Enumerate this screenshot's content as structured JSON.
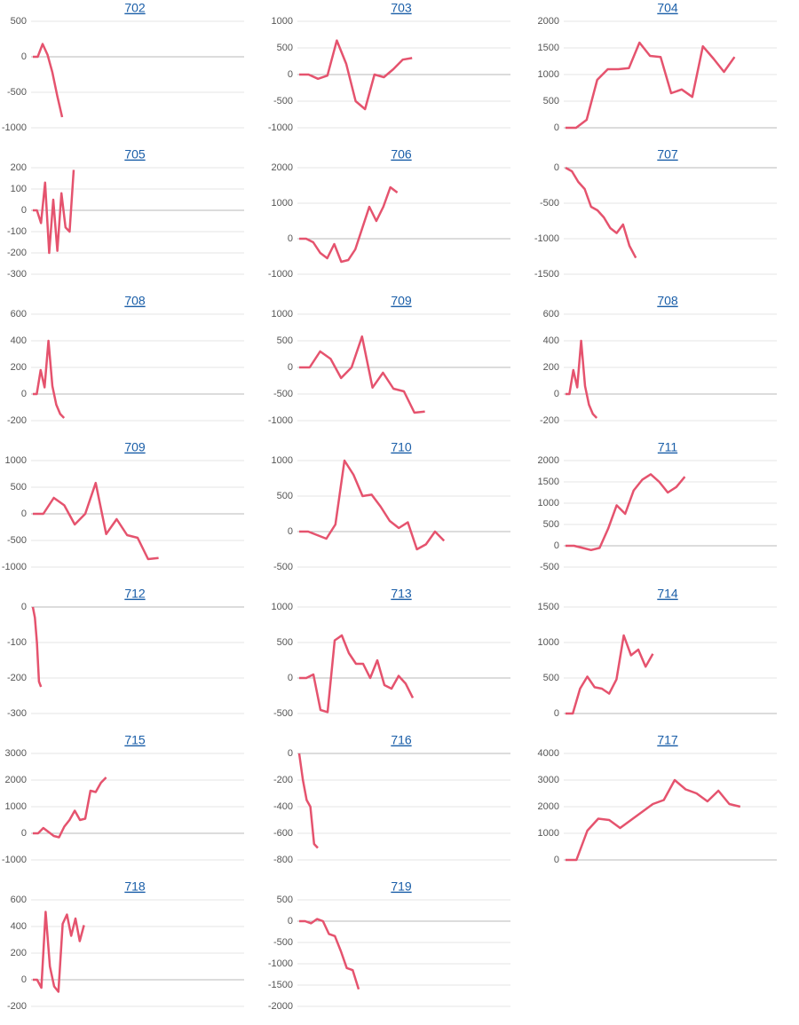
{
  "chart_data": [
    {
      "type": "line",
      "title": "702",
      "color": "#e5536e",
      "ylim": [
        -1000,
        500
      ],
      "yticks": [
        -1000,
        -500,
        0,
        500
      ],
      "values": [
        0,
        0,
        180,
        30,
        -220,
        -550,
        -850
      ]
    },
    {
      "type": "line",
      "title": "703",
      "color": "#e5536e",
      "ylim": [
        -1000,
        1000
      ],
      "yticks": [
        -1000,
        -500,
        0,
        500,
        1000
      ],
      "values": [
        0,
        0,
        -80,
        -20,
        640,
        200,
        -500,
        -650,
        0,
        -50,
        100,
        280,
        310
      ]
    },
    {
      "type": "line",
      "title": "704",
      "color": "#e5536e",
      "ylim": [
        0,
        2000
      ],
      "yticks": [
        0,
        500,
        1000,
        1500,
        2000
      ],
      "values": [
        0,
        0,
        150,
        900,
        1100,
        1100,
        1120,
        1600,
        1350,
        1330,
        650,
        720,
        580,
        1530,
        1300,
        1050,
        1330
      ]
    },
    {
      "type": "line",
      "title": "705",
      "color": "#e5536e",
      "ylim": [
        -300,
        200
      ],
      "yticks": [
        -300,
        -200,
        -100,
        0,
        100,
        200
      ],
      "values": [
        0,
        0,
        -60,
        130,
        -200,
        50,
        -190,
        80,
        -80,
        -100,
        190
      ]
    },
    {
      "type": "line",
      "title": "706",
      "color": "#e5536e",
      "ylim": [
        -1000,
        2000
      ],
      "yticks": [
        -1000,
        0,
        1000,
        2000
      ],
      "values": [
        0,
        0,
        -100,
        -400,
        -550,
        -150,
        -650,
        -600,
        -300,
        300,
        900,
        500,
        900,
        1450,
        1300
      ]
    },
    {
      "type": "line",
      "title": "707",
      "color": "#e5536e",
      "ylim": [
        -1500,
        0
      ],
      "yticks": [
        -1500,
        -1000,
        -500,
        0
      ],
      "values": [
        0,
        -50,
        -200,
        -300,
        -550,
        -600,
        -700,
        -850,
        -920,
        -800,
        -1100,
        -1270
      ]
    },
    {
      "type": "line",
      "title": "708",
      "color": "#e5536e",
      "ylim": [
        -200,
        600
      ],
      "yticks": [
        -200,
        0,
        200,
        400,
        600
      ],
      "values": [
        0,
        0,
        180,
        50,
        400,
        60,
        -80,
        -150,
        -180
      ]
    },
    {
      "type": "line",
      "title": "709",
      "color": "#e5536e",
      "ylim": [
        -1000,
        1000
      ],
      "yticks": [
        -1000,
        -500,
        0,
        500,
        1000
      ],
      "values": [
        0,
        0,
        300,
        160,
        -200,
        0,
        580,
        -380,
        -100,
        -400,
        -450,
        -850,
        -830
      ]
    },
    {
      "type": "line",
      "title": "708",
      "color": "#e5536e",
      "ylim": [
        -200,
        600
      ],
      "yticks": [
        -200,
        0,
        200,
        400,
        600
      ],
      "values": [
        0,
        0,
        180,
        50,
        400,
        60,
        -80,
        -150,
        -180
      ]
    },
    {
      "type": "line",
      "title": "709",
      "color": "#e5536e",
      "ylim": [
        -1000,
        1000
      ],
      "yticks": [
        -1000,
        -500,
        0,
        500,
        1000
      ],
      "values": [
        0,
        0,
        300,
        160,
        -200,
        0,
        580,
        -380,
        -100,
        -400,
        -450,
        -850,
        -830
      ]
    },
    {
      "type": "line",
      "title": "710",
      "color": "#e5536e",
      "ylim": [
        -500,
        1000
      ],
      "yticks": [
        -500,
        0,
        500,
        1000
      ],
      "values": [
        0,
        0,
        -50,
        -100,
        100,
        1000,
        800,
        500,
        520,
        350,
        150,
        50,
        130,
        -250,
        -180,
        0,
        -130
      ]
    },
    {
      "type": "line",
      "title": "711",
      "color": "#e5536e",
      "ylim": [
        -500,
        2000
      ],
      "yticks": [
        -500,
        0,
        500,
        1000,
        1500,
        2000
      ],
      "values": [
        0,
        0,
        -50,
        -100,
        -50,
        400,
        950,
        750,
        1300,
        1550,
        1680,
        1500,
        1250,
        1380,
        1620
      ]
    },
    {
      "type": "line",
      "title": "712",
      "color": "#e5536e",
      "ylim": [
        -300,
        0
      ],
      "yticks": [
        -300,
        -200,
        -100,
        0
      ],
      "values": [
        0,
        -30,
        -100,
        -210,
        -225
      ]
    },
    {
      "type": "line",
      "title": "713",
      "color": "#e5536e",
      "ylim": [
        -500,
        1000
      ],
      "yticks": [
        -500,
        0,
        500,
        1000
      ],
      "values": [
        0,
        0,
        50,
        -450,
        -480,
        530,
        600,
        350,
        200,
        200,
        0,
        250,
        -100,
        -150,
        30,
        -80,
        -280
      ]
    },
    {
      "type": "line",
      "title": "714",
      "color": "#e5536e",
      "ylim": [
        0,
        1500
      ],
      "yticks": [
        0,
        500,
        1000,
        1500
      ],
      "values": [
        0,
        0,
        350,
        520,
        370,
        350,
        280,
        480,
        1100,
        820,
        900,
        660,
        840
      ]
    },
    {
      "type": "line",
      "title": "715",
      "color": "#e5536e",
      "ylim": [
        -1000,
        3000
      ],
      "yticks": [
        -1000,
        0,
        1000,
        2000,
        3000
      ],
      "values": [
        0,
        0,
        200,
        50,
        -100,
        -150,
        250,
        500,
        850,
        500,
        550,
        1600,
        1550,
        1900,
        2100
      ]
    },
    {
      "type": "line",
      "title": "716",
      "color": "#e5536e",
      "ylim": [
        -800,
        0
      ],
      "yticks": [
        -800,
        -600,
        -400,
        -200,
        0
      ],
      "values": [
        0,
        -200,
        -350,
        -400,
        -680,
        -710
      ]
    },
    {
      "type": "line",
      "title": "717",
      "color": "#e5536e",
      "ylim": [
        0,
        4000
      ],
      "yticks": [
        0,
        1000,
        2000,
        3000,
        4000
      ],
      "values": [
        0,
        0,
        1100,
        1550,
        1500,
        1200,
        1500,
        1800,
        2100,
        2250,
        3000,
        2650,
        2500,
        2200,
        2600,
        2100,
        2000
      ]
    },
    {
      "type": "line",
      "title": "718",
      "color": "#e5536e",
      "ylim": [
        -200,
        600
      ],
      "yticks": [
        -200,
        0,
        200,
        400,
        600
      ],
      "values": [
        0,
        0,
        -60,
        510,
        100,
        -50,
        -90,
        420,
        490,
        330,
        460,
        290,
        410
      ]
    },
    {
      "type": "line",
      "title": "719",
      "color": "#e5536e",
      "ylim": [
        -2000,
        500
      ],
      "yticks": [
        -2000,
        -1500,
        -1000,
        -500,
        0,
        500
      ],
      "values": [
        0,
        0,
        -50,
        50,
        0,
        -300,
        -350,
        -700,
        -1100,
        -1150,
        -1600
      ]
    }
  ]
}
